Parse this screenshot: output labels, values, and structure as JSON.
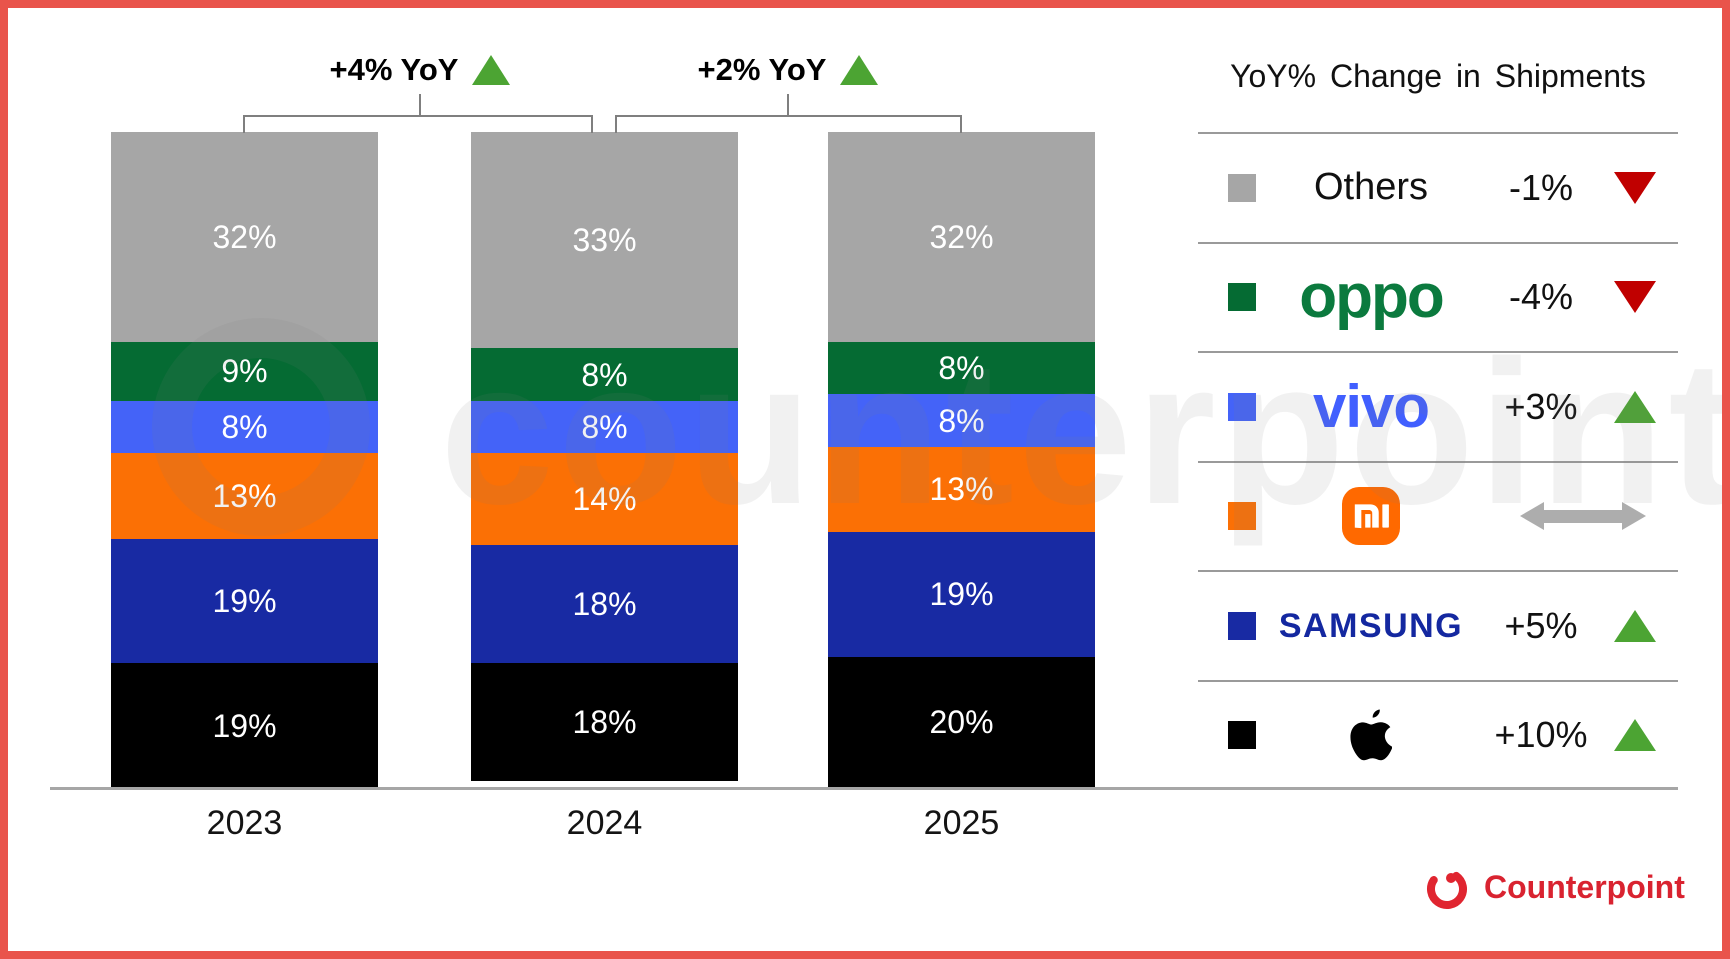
{
  "chart_data": {
    "type": "stacked-bar",
    "title": "",
    "categories": [
      "2023",
      "2024",
      "2025"
    ],
    "unit": "%",
    "series": [
      {
        "name": "Others",
        "color": "#A6A6A6",
        "values": [
          32,
          33,
          32
        ]
      },
      {
        "name": "OPPO",
        "color": "#056B33",
        "values": [
          9,
          8,
          8
        ]
      },
      {
        "name": "vivo",
        "color": "#4463F8",
        "values": [
          8,
          8,
          8
        ]
      },
      {
        "name": "Xiaomi",
        "color": "#FB7005",
        "values": [
          13,
          14,
          13
        ]
      },
      {
        "name": "Samsung",
        "color": "#182AA3",
        "values": [
          19,
          18,
          19
        ]
      },
      {
        "name": "Apple",
        "color": "#000000",
        "values": [
          19,
          18,
          20
        ]
      }
    ],
    "total_yoy": [
      {
        "between": [
          "2023",
          "2024"
        ],
        "label": "+4% YoY",
        "direction": "up"
      },
      {
        "between": [
          "2024",
          "2025"
        ],
        "label": "+2% YoY",
        "direction": "up"
      }
    ],
    "legend_position": "right",
    "grid": false,
    "ylim": [
      0,
      100
    ]
  },
  "legend": {
    "title": "YoY% Change in Shipments",
    "rows": [
      {
        "brand": "Others",
        "display": "text",
        "label": "Others",
        "swatch": "#A6A6A6",
        "logo_color": "#111111",
        "change": "-1%",
        "direction": "down"
      },
      {
        "brand": "OPPO",
        "display": "oppo-logo",
        "label": "oppo",
        "swatch": "#056B33",
        "logo_color": "#0B7A3E",
        "change": "-4%",
        "direction": "down"
      },
      {
        "brand": "vivo",
        "display": "vivo-logo",
        "label": "vivo",
        "swatch": "#4463F8",
        "logo_color": "#415FFF",
        "change": "+3%",
        "direction": "up"
      },
      {
        "brand": "Xiaomi",
        "display": "mi-logo",
        "label": "",
        "swatch": "#FB7005",
        "logo_color": "#FF6900",
        "change": "",
        "direction": "flat"
      },
      {
        "brand": "Samsung",
        "display": "samsung-logo",
        "label": "SAMSUNG",
        "swatch": "#182AA3",
        "logo_color": "#1428A0",
        "change": "+5%",
        "direction": "up"
      },
      {
        "brand": "Apple",
        "display": "apple-logo",
        "label": "",
        "swatch": "#000000",
        "logo_color": "#000000",
        "change": "+10%",
        "direction": "up"
      }
    ]
  },
  "watermark": {
    "text": "counterpoint"
  },
  "footer": {
    "logo_text": "Counterpoint",
    "color": "#D92330"
  },
  "colors": {
    "frame_border": "#E9544B",
    "up_triangle": "#4CA433",
    "down_triangle": "#C00000",
    "flat_arrow": "#ADADAD",
    "axis_line": "#A6A6A6",
    "separator": "#9A9A9A",
    "bracket": "#7F7F7F",
    "bar_label": "#FFFFFF"
  }
}
